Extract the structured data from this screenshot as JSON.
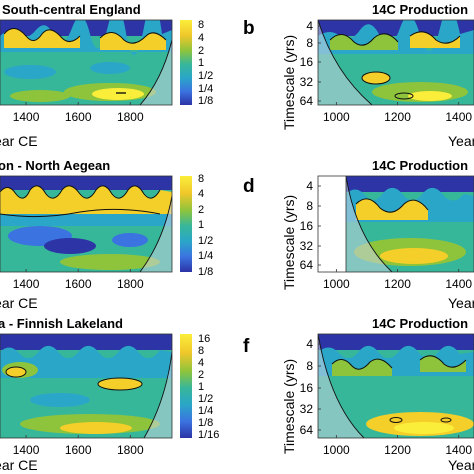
{
  "colors": {
    "dark_blue": "#2c34a6",
    "blue": "#3b73e0",
    "cyan": "#2aa6c8",
    "teal": "#37b79a",
    "green": "#8ec43c",
    "yellow": "#f4cf2a",
    "bright_yellow": "#fbee3a",
    "contour": "#111111"
  },
  "chart_data": [
    {
      "type": "heatmap",
      "panel_letter": "",
      "title": "South-central England",
      "xlabel": "Year CE",
      "xticks": [
        "1400",
        "1600",
        "1800"
      ],
      "xlim": [
        1300,
        1960
      ],
      "colorbar_ticks": [
        "8",
        "4",
        "2",
        "1",
        "1/2",
        "1/4",
        "1/8"
      ]
    },
    {
      "type": "heatmap",
      "panel_letter": "b",
      "title": "14C Production",
      "xlabel": "Year CE",
      "ylabel": "Timescale (yrs)",
      "xticks": [
        "1000",
        "1200",
        "1400"
      ],
      "yticks": [
        "4",
        "8",
        "16",
        "32",
        "64"
      ],
      "xlim": [
        940,
        1450
      ]
    },
    {
      "type": "heatmap",
      "panel_letter": "",
      "title": "on - North Aegean",
      "xlabel": "Year CE",
      "xticks": [
        "1400",
        "1600",
        "1800"
      ],
      "xlim": [
        1300,
        1960
      ],
      "colorbar_ticks": [
        "8",
        "4",
        "2",
        "1",
        "1/2",
        "1/4",
        "1/8"
      ]
    },
    {
      "type": "heatmap",
      "panel_letter": "d",
      "title": "14C Production",
      "xlabel": "Year CE",
      "ylabel": "Timescale (yrs)",
      "xticks": [
        "1000",
        "1200",
        "1400"
      ],
      "yticks": [
        "4",
        "8",
        "16",
        "32",
        "64"
      ],
      "xlim": [
        940,
        1450
      ]
    },
    {
      "type": "heatmap",
      "panel_letter": "",
      "title": "a - Finnish Lakeland",
      "xlabel": "Year CE",
      "xticks": [
        "1400",
        "1600",
        "1800"
      ],
      "xlim": [
        1300,
        1960
      ],
      "colorbar_ticks": [
        "16",
        "8",
        "4",
        "2",
        "1",
        "1/2",
        "1/4",
        "1/8",
        "1/16"
      ]
    },
    {
      "type": "heatmap",
      "panel_letter": "f",
      "title": "14C Production",
      "xlabel": "Year CE",
      "ylabel": "Timescale (yrs)",
      "xticks": [
        "1000",
        "1200",
        "1400"
      ],
      "yticks": [
        "4",
        "8",
        "16",
        "32",
        "64"
      ],
      "xlim": [
        940,
        1450
      ]
    }
  ]
}
